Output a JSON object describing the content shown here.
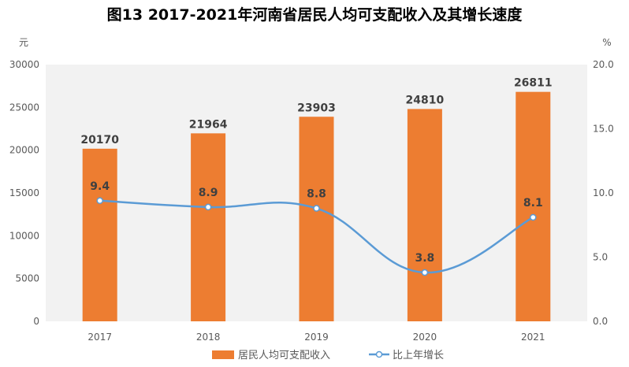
{
  "chart_data": {
    "type": "bar+line",
    "title": "图13 2017-2021年河南省居民人均可支配收入及其增长速度",
    "categories": [
      "2017",
      "2018",
      "2019",
      "2020",
      "2021"
    ],
    "series": [
      {
        "name": "居民人均可支配收入",
        "type": "bar",
        "axis": "left",
        "values": [
          20170,
          21964,
          23903,
          24810,
          26811
        ],
        "color": "#ED7D31"
      },
      {
        "name": "比上年增长",
        "type": "line",
        "axis": "right",
        "values": [
          9.4,
          8.9,
          8.8,
          3.8,
          8.1
        ],
        "color": "#5B9BD5"
      }
    ],
    "left_axis": {
      "unit": "元",
      "ylim": [
        0,
        30000
      ],
      "ticks": [
        "0",
        "5000",
        "10000",
        "15000",
        "20000",
        "25000",
        "30000"
      ]
    },
    "right_axis": {
      "unit": "%",
      "ylim": [
        0,
        20
      ],
      "ticks": [
        "0.0",
        "5.0",
        "10.0",
        "15.0",
        "20.0"
      ]
    },
    "plot_background": "#F2F2F2",
    "legend": "bottom",
    "grid": false
  }
}
